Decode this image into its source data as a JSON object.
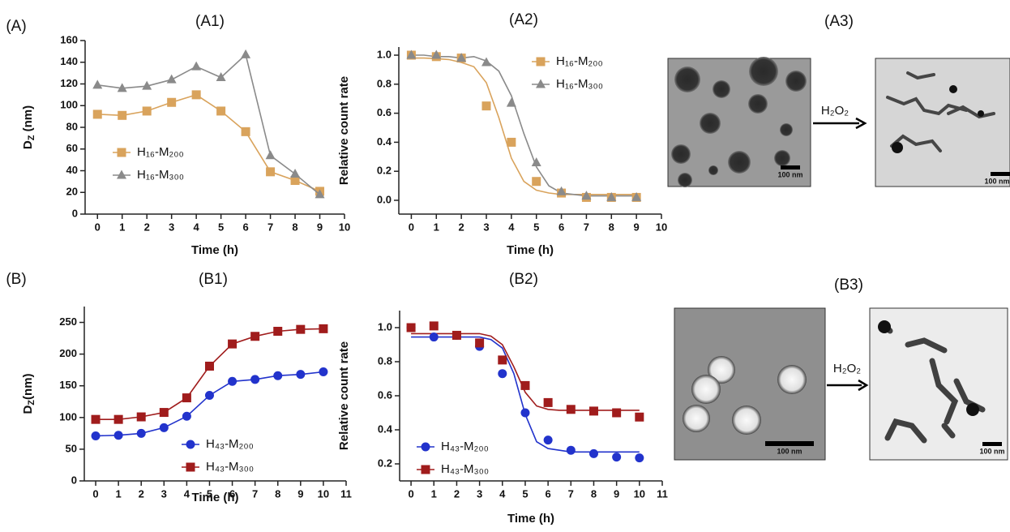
{
  "panel_labels": [
    "(A)",
    "(B)"
  ],
  "chart_data": [
    {
      "type": "line",
      "title": "(A1)",
      "xlabel": "Time (h)",
      "ylabel": [
        "D",
        "Z",
        " (nm)"
      ],
      "x": [
        0,
        1,
        2,
        3,
        4,
        5,
        6,
        7,
        8,
        9
      ],
      "xlim": [
        -0.5,
        10
      ],
      "xticks": [
        0,
        1,
        2,
        3,
        4,
        5,
        6,
        7,
        8,
        9,
        10
      ],
      "ylim": [
        0,
        160
      ],
      "yticks": [
        0,
        20,
        40,
        60,
        80,
        100,
        120,
        140,
        160
      ],
      "lines": true,
      "series": [
        {
          "name": "H₁₆-M₂₀₀",
          "color": "#d9a35c",
          "marker": "square",
          "values": [
            92,
            91,
            95,
            103,
            110,
            95,
            76,
            39,
            31,
            21
          ]
        },
        {
          "name": "H₁₆-M₃₀₀",
          "color": "#8a8a8a",
          "marker": "triangle",
          "values": [
            119,
            116,
            118,
            124,
            136,
            126,
            147,
            54,
            37,
            18
          ]
        }
      ]
    },
    {
      "type": "line",
      "title": "(A2)",
      "xlabel": "Time (h)",
      "ylabel": "Relative count rate",
      "x": [
        0,
        1,
        2,
        3,
        4,
        5,
        6,
        7,
        8,
        9
      ],
      "xlim": [
        -0.5,
        10
      ],
      "xticks": [
        0,
        1,
        2,
        3,
        4,
        5,
        6,
        7,
        8,
        9,
        10
      ],
      "ylim": [
        -0.095,
        1.056
      ],
      "yticks": [
        {
          "value": 0,
          "label": "0.0"
        },
        0.2,
        0.4,
        0.6,
        0.8,
        {
          "value": 1,
          "label": "1.0"
        }
      ],
      "lines": false,
      "series": [
        {
          "name": "H₁₆-M₂₀₀",
          "color": "#d9a35c",
          "marker": "square",
          "values": [
            1.0,
            0.99,
            0.98,
            0.65,
            0.4,
            0.13,
            0.05,
            0.02,
            0.02,
            0.02
          ]
        },
        {
          "name": "H₁₆-M₃₀₀",
          "color": "#8a8a8a",
          "marker": "triangle",
          "values": [
            1.0,
            1.0,
            0.98,
            0.95,
            0.67,
            0.26,
            0.06,
            0.03,
            0.02,
            0.02
          ]
        }
      ],
      "fit_x": [
        0,
        0.5,
        1,
        1.5,
        2,
        2.5,
        3,
        3.5,
        4,
        4.5,
        5,
        5.5,
        6,
        6.5,
        7,
        7.5,
        8,
        8.5,
        9
      ],
      "fits": [
        {
          "color": "#d9a35c",
          "values": [
            0.98,
            0.98,
            0.976,
            0.97,
            0.95,
            0.92,
            0.81,
            0.57,
            0.29,
            0.13,
            0.07,
            0.05,
            0.04,
            0.04,
            0.04,
            0.04,
            0.04,
            0.04,
            0.04
          ]
        },
        {
          "color": "#8a8a8a",
          "values": [
            1.0,
            1.0,
            0.99,
            0.99,
            0.98,
            0.99,
            0.96,
            0.89,
            0.72,
            0.46,
            0.23,
            0.1,
            0.05,
            0.04,
            0.03,
            0.03,
            0.03,
            0.03,
            0.03
          ]
        }
      ]
    },
    {
      "type": "line",
      "title": "(B1)",
      "xlabel": "Time (h)",
      "ylabel": [
        "D",
        "Z",
        "(nm)"
      ],
      "x": [
        0,
        1,
        2,
        3,
        4,
        5,
        6,
        7,
        8,
        9,
        10
      ],
      "xlim": [
        -0.5,
        11
      ],
      "xticks": [
        0,
        1,
        2,
        3,
        4,
        5,
        6,
        7,
        8,
        9,
        10,
        11
      ],
      "ylim": [
        0,
        275
      ],
      "yticks": [
        0,
        50,
        100,
        150,
        200,
        250
      ],
      "lines": true,
      "series": [
        {
          "name": "H₄₃-M₂₀₀",
          "color": "#2233cc",
          "marker": "circle",
          "values": [
            71,
            72,
            75,
            84,
            102,
            135,
            157,
            160,
            166,
            168,
            172
          ]
        },
        {
          "name": "H₄₃-M₃₀₀",
          "color": "#a01c1c",
          "marker": "square",
          "values": [
            97,
            97,
            101,
            108,
            131,
            181,
            216,
            228,
            236,
            239,
            240
          ]
        }
      ]
    },
    {
      "type": "line",
      "title": "(B2)",
      "xlabel": "Time (h)",
      "ylabel": "Relative count rate",
      "x": [
        0,
        1,
        2,
        3,
        4,
        5,
        6,
        7,
        8,
        9,
        10
      ],
      "xlim": [
        -0.5,
        11
      ],
      "xticks": [
        0,
        1,
        2,
        3,
        4,
        5,
        6,
        7,
        8,
        9,
        10,
        11
      ],
      "ylim": [
        0.1,
        1.1
      ],
      "yticks": [
        0.2,
        0.4,
        0.6,
        0.8,
        {
          "value": 1,
          "label": "1.0"
        }
      ],
      "lines": false,
      "series": [
        {
          "name": "H₄₃-M₂₀₀",
          "color": "#2233cc",
          "marker": "circle",
          "values": [
            1.0,
            0.945,
            0.955,
            0.89,
            0.73,
            0.5,
            0.34,
            0.28,
            0.26,
            0.24,
            0.235
          ]
        },
        {
          "name": "H₄₃-M₃₀₀",
          "color": "#a01c1c",
          "marker": "square",
          "values": [
            1.0,
            1.01,
            0.955,
            0.91,
            0.81,
            0.66,
            0.56,
            0.52,
            0.51,
            0.5,
            0.475
          ]
        }
      ],
      "fit_x": [
        0,
        0.5,
        1,
        1.5,
        2,
        2.5,
        3,
        3.5,
        4,
        4.5,
        5,
        5.5,
        6,
        6.5,
        7,
        7.5,
        8,
        8.5,
        9,
        9.5,
        10
      ],
      "fits": [
        {
          "color": "#2233cc",
          "values": [
            0.945,
            0.945,
            0.945,
            0.945,
            0.945,
            0.945,
            0.945,
            0.93,
            0.88,
            0.73,
            0.49,
            0.33,
            0.29,
            0.28,
            0.27,
            0.27,
            0.27,
            0.27,
            0.27,
            0.27,
            0.27
          ]
        },
        {
          "color": "#a01c1c",
          "values": [
            0.965,
            0.965,
            0.965,
            0.965,
            0.965,
            0.965,
            0.965,
            0.95,
            0.9,
            0.77,
            0.62,
            0.54,
            0.52,
            0.515,
            0.515,
            0.515,
            0.515,
            0.515,
            0.515,
            0.515,
            0.515
          ]
        }
      ]
    }
  ],
  "images": [
    {
      "title": "(A3)",
      "reagent": "H₂O₂",
      "scale_labels": [
        "100 nm",
        "100 nm"
      ]
    },
    {
      "title": "(B3)",
      "reagent": "H₂O₂",
      "scale_labels": [
        "100 nm",
        "100 nm"
      ]
    }
  ]
}
